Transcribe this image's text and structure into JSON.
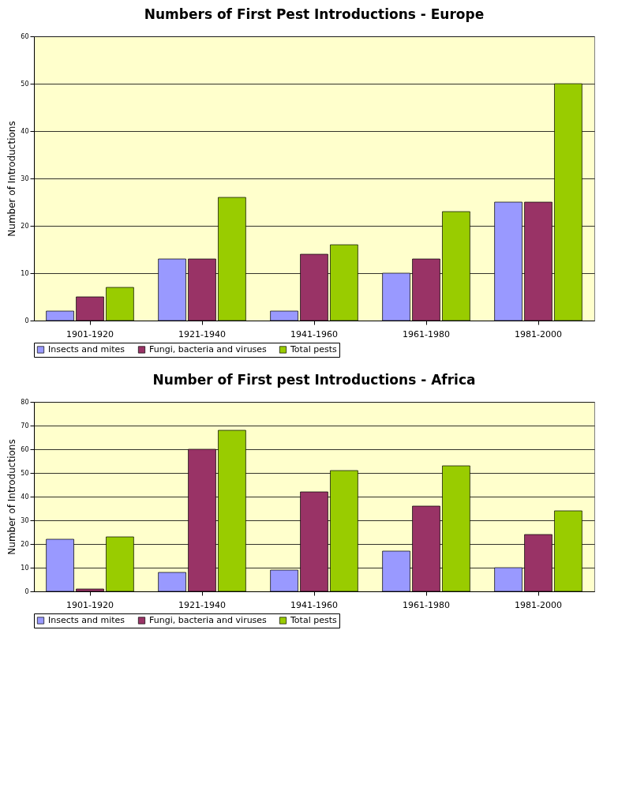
{
  "chart_data": [
    {
      "type": "bar",
      "title": "Numbers of First Pest Introductions - Europe",
      "ylabel": "Number of Introductions",
      "categories": [
        "1901-1920",
        "1921-1940",
        "1941-1960",
        "1961-1980",
        "1981-2000"
      ],
      "series": [
        {
          "name": "Insects and mites",
          "color": "#9999ff",
          "values": [
            2,
            13,
            2,
            10,
            25
          ]
        },
        {
          "name": "Fungi, bacteria and viruses",
          "color": "#993366",
          "values": [
            5,
            13,
            14,
            13,
            25
          ]
        },
        {
          "name": "Total pests",
          "color": "#99cc00",
          "values": [
            7,
            26,
            16,
            23,
            50
          ]
        }
      ],
      "ylim": [
        0,
        60
      ],
      "yticks": [
        0,
        10,
        20,
        30,
        40,
        50,
        60
      ],
      "grid": "y",
      "legend": "bottom"
    },
    {
      "type": "bar",
      "title": "Number of First pest Introductions - Africa",
      "ylabel": "Number of Introductions",
      "categories": [
        "1901-1920",
        "1921-1940",
        "1941-1960",
        "1961-1980",
        "1981-2000"
      ],
      "series": [
        {
          "name": "Insects and mites",
          "color": "#9999ff",
          "values": [
            22,
            8,
            9,
            17,
            10
          ]
        },
        {
          "name": "Fungi, bacteria and viruses",
          "color": "#993366",
          "values": [
            1,
            60,
            42,
            36,
            24
          ]
        },
        {
          "name": "Total pests",
          "color": "#99cc00",
          "values": [
            23,
            68,
            51,
            53,
            34
          ]
        }
      ],
      "ylim": [
        0,
        80
      ],
      "yticks": [
        0,
        10,
        20,
        30,
        40,
        50,
        60,
        70,
        80
      ],
      "grid": "y",
      "legend": "bottom"
    }
  ]
}
